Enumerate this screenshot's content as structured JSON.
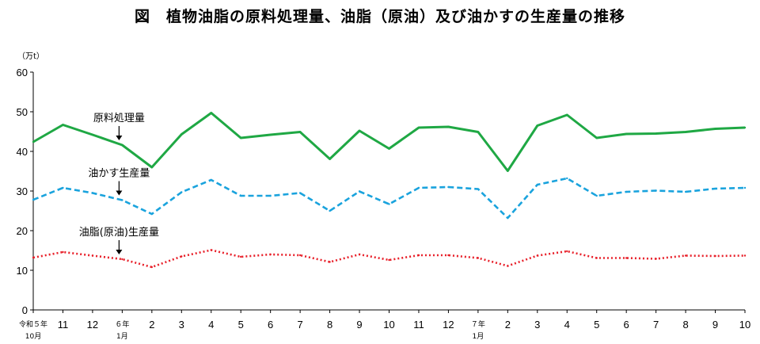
{
  "chart_data": {
    "type": "line",
    "title": "図　植物油脂の原料処理量、油脂（原油）及び油かすの生産量の推移",
    "ylabel": "（万t）",
    "xlabel": "",
    "ylim": [
      0,
      60
    ],
    "yticks": [
      "0",
      "10",
      "20",
      "30",
      "40",
      "50",
      "60"
    ],
    "categories": [
      "令和５年10月",
      "11",
      "12",
      "６年1月",
      "2",
      "3",
      "4",
      "5",
      "6",
      "7",
      "8",
      "9",
      "10",
      "11",
      "12",
      "７年1月",
      "2",
      "3",
      "4",
      "5",
      "6",
      "7",
      "8",
      "9",
      "10"
    ],
    "tick_labels": [
      {
        "main": "令和５年",
        "sub": "10月"
      },
      {
        "main": "11",
        "sub": ""
      },
      {
        "main": "12",
        "sub": ""
      },
      {
        "main": "６年",
        "sub": "1月"
      },
      {
        "main": "2",
        "sub": ""
      },
      {
        "main": "3",
        "sub": ""
      },
      {
        "main": "4",
        "sub": ""
      },
      {
        "main": "5",
        "sub": ""
      },
      {
        "main": "6",
        "sub": ""
      },
      {
        "main": "7",
        "sub": ""
      },
      {
        "main": "8",
        "sub": ""
      },
      {
        "main": "9",
        "sub": ""
      },
      {
        "main": "10",
        "sub": ""
      },
      {
        "main": "11",
        "sub": ""
      },
      {
        "main": "12",
        "sub": ""
      },
      {
        "main": "７年",
        "sub": "1月"
      },
      {
        "main": "2",
        "sub": ""
      },
      {
        "main": "3",
        "sub": ""
      },
      {
        "main": "4",
        "sub": ""
      },
      {
        "main": "5",
        "sub": ""
      },
      {
        "main": "6",
        "sub": ""
      },
      {
        "main": "7",
        "sub": ""
      },
      {
        "main": "8",
        "sub": ""
      },
      {
        "main": "9",
        "sub": ""
      },
      {
        "main": "10",
        "sub": ""
      }
    ],
    "series": [
      {
        "name": "原料処理量",
        "color": "#1fa844",
        "style": "solid",
        "label_index": 3,
        "values": [
          42.4,
          46.7,
          44.2,
          41.6,
          36.0,
          44.3,
          49.7,
          43.4,
          44.2,
          44.9,
          38.1,
          45.2,
          40.7,
          46.0,
          46.2,
          44.9,
          35.1,
          46.5,
          49.2,
          43.4,
          44.4,
          44.5,
          44.9,
          45.7,
          46.0
        ]
      },
      {
        "name": "油かす生産量",
        "color": "#1aa3dd",
        "style": "dashed",
        "label_index": 3,
        "values": [
          27.8,
          30.8,
          29.5,
          27.7,
          24.2,
          29.7,
          32.8,
          28.8,
          28.8,
          29.5,
          25.0,
          29.9,
          26.7,
          30.8,
          31.0,
          30.5,
          23.2,
          31.6,
          33.2,
          28.8,
          29.8,
          30.1,
          29.8,
          30.6,
          30.8
        ]
      },
      {
        "name": "油脂(原油)生産量",
        "color": "#e8202a",
        "style": "dotted",
        "label_index": 3,
        "values": [
          13.2,
          14.6,
          13.7,
          12.8,
          10.8,
          13.5,
          15.1,
          13.4,
          14.0,
          13.8,
          12.1,
          14.0,
          12.6,
          13.8,
          13.8,
          13.1,
          11.1,
          13.7,
          14.8,
          13.1,
          13.1,
          12.9,
          13.7,
          13.6,
          13.7
        ]
      }
    ]
  }
}
